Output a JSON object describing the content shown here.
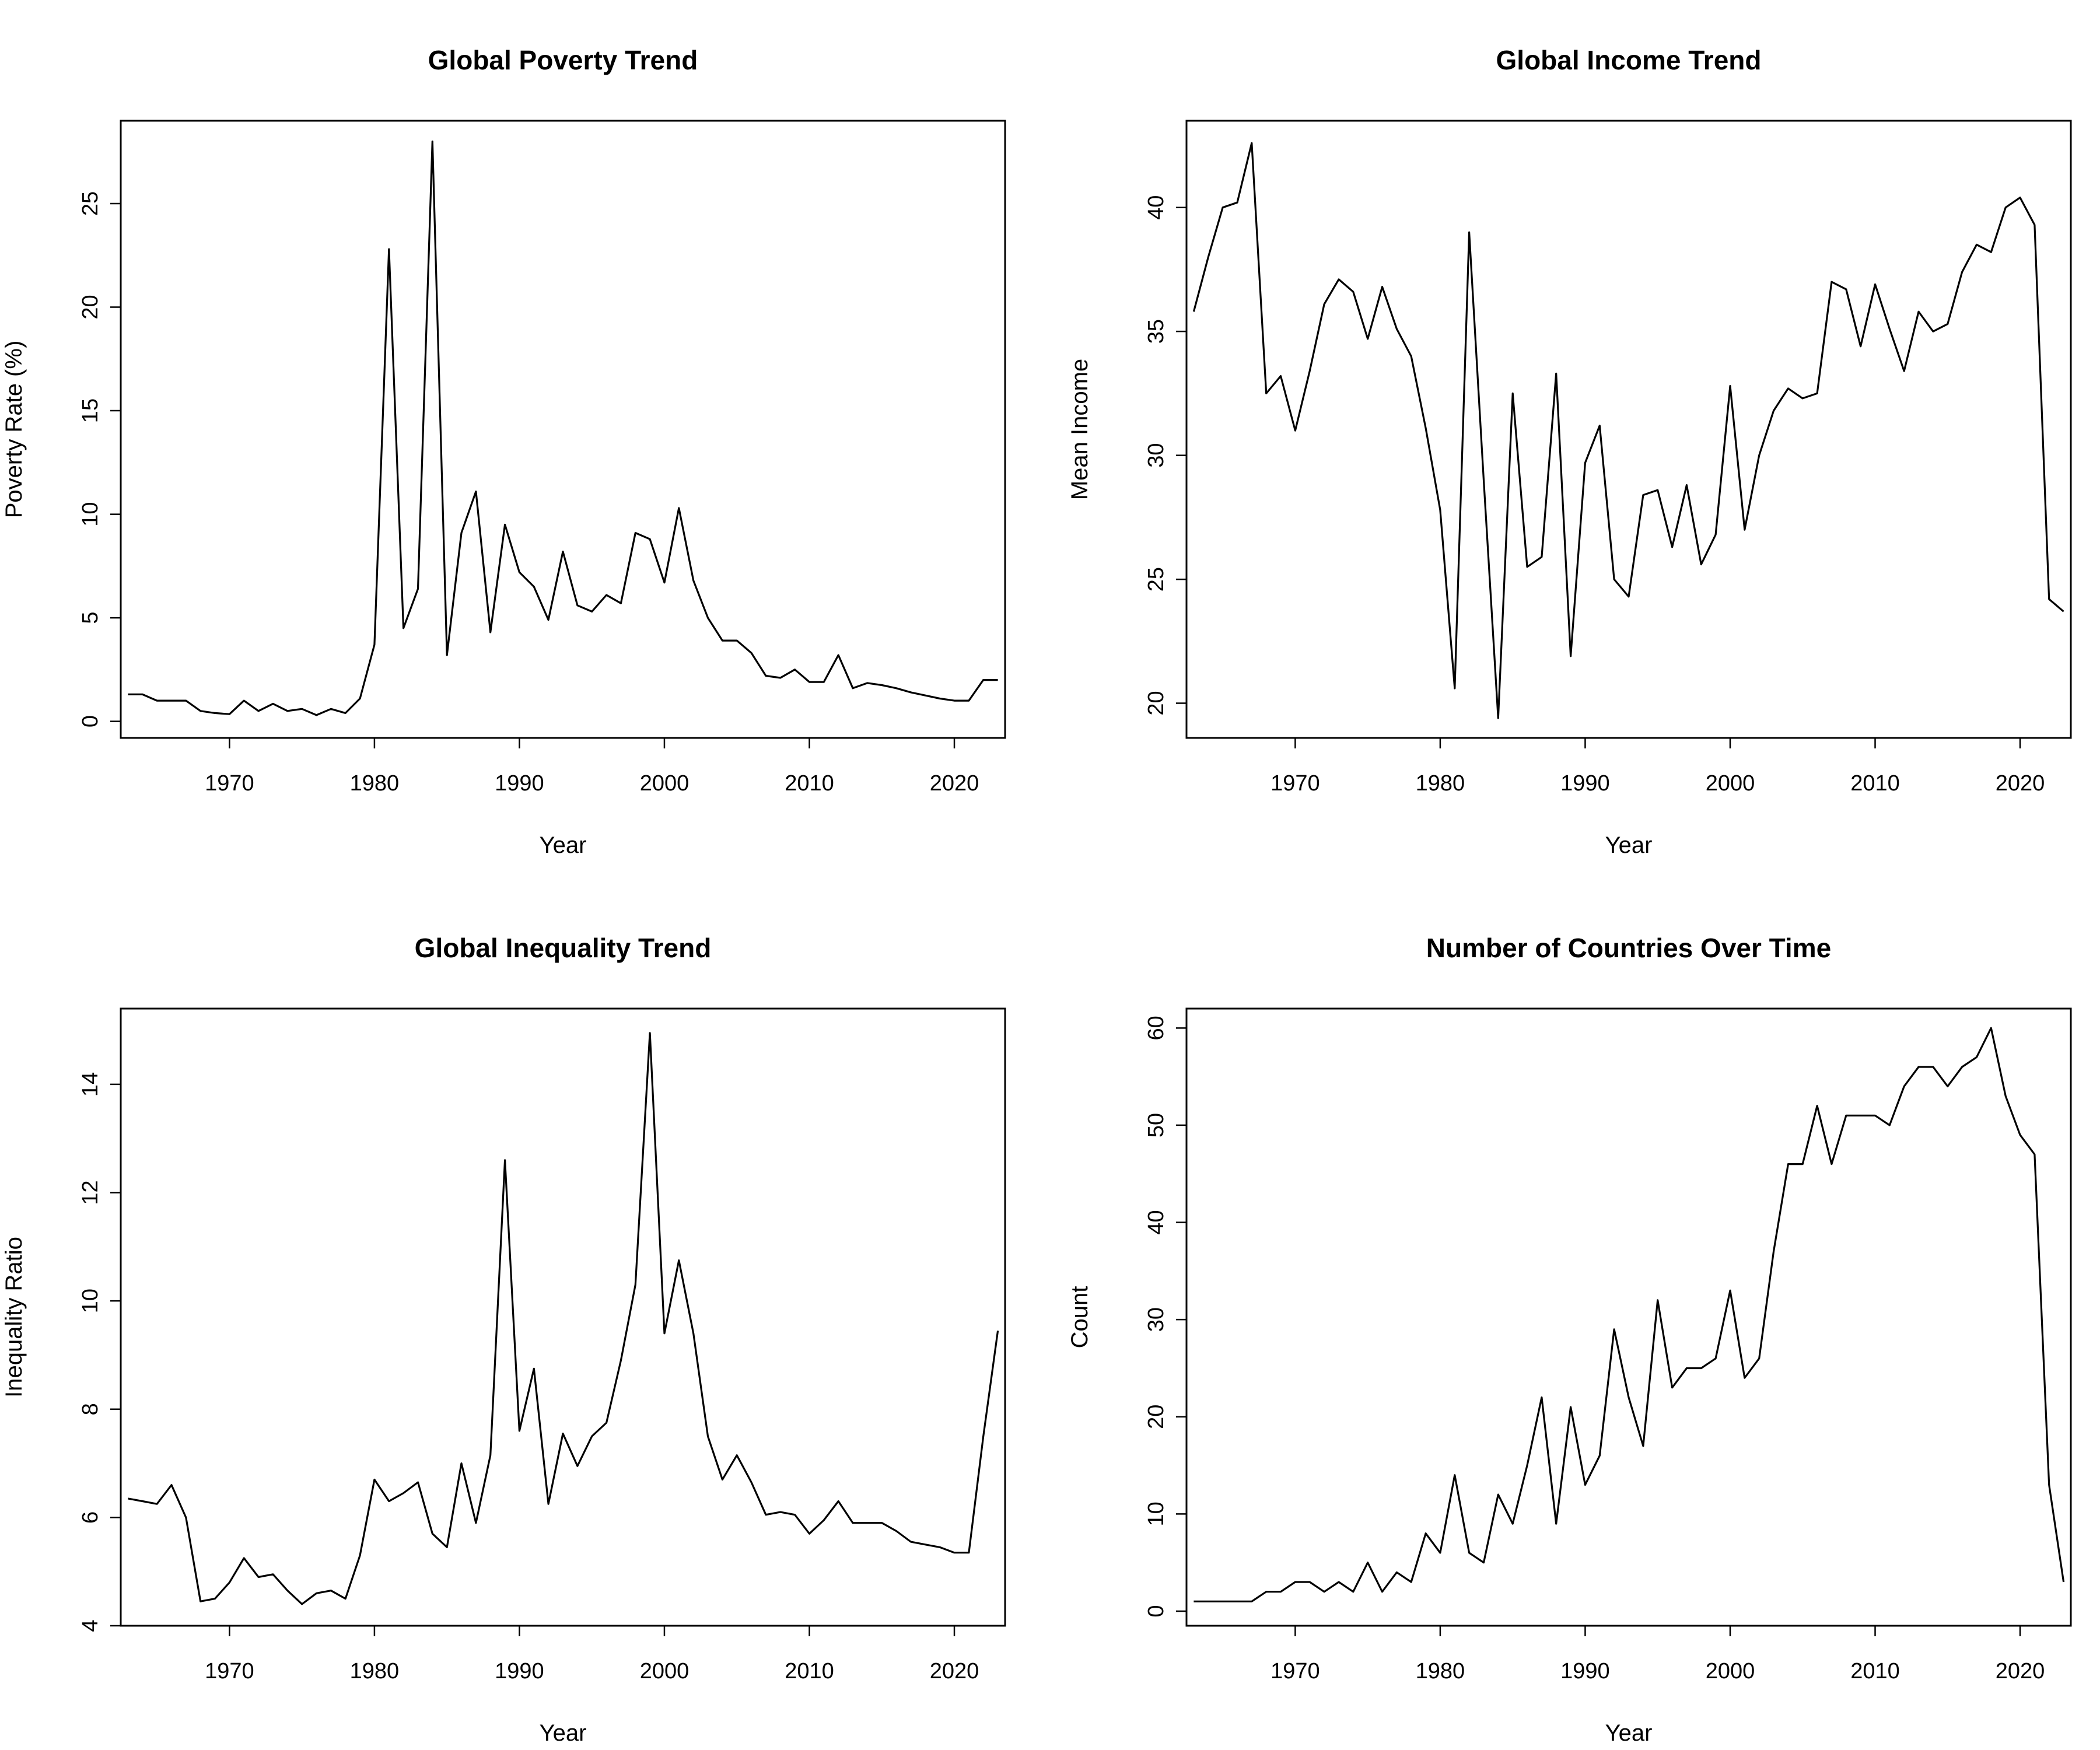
{
  "chart_data": [
    {
      "type": "line",
      "title": "Global Poverty Trend",
      "xlabel": "Year",
      "ylabel": "Poverty Rate (%)",
      "xlim": [
        1962.5,
        2023.5
      ],
      "ylim": [
        -0.8,
        29
      ],
      "xticks": [
        1970,
        1980,
        1990,
        2000,
        2010,
        2020
      ],
      "yticks": [
        0,
        5,
        10,
        15,
        20,
        25
      ],
      "x": [
        1963,
        1964,
        1965,
        1966,
        1967,
        1968,
        1969,
        1970,
        1971,
        1972,
        1973,
        1974,
        1975,
        1976,
        1977,
        1978,
        1979,
        1980,
        1981,
        1982,
        1983,
        1984,
        1985,
        1986,
        1987,
        1988,
        1989,
        1990,
        1991,
        1992,
        1993,
        1994,
        1995,
        1996,
        1997,
        1998,
        1999,
        2000,
        2001,
        2002,
        2003,
        2004,
        2005,
        2006,
        2007,
        2008,
        2009,
        2010,
        2011,
        2012,
        2013,
        2014,
        2015,
        2016,
        2017,
        2018,
        2019,
        2020,
        2021,
        2022,
        2023
      ],
      "y": [
        1.3,
        1.3,
        1.0,
        1.0,
        1.0,
        0.5,
        0.4,
        0.35,
        1.0,
        0.5,
        0.85,
        0.5,
        0.6,
        0.3,
        0.6,
        0.4,
        1.1,
        3.7,
        22.8,
        4.5,
        6.4,
        28.0,
        3.2,
        9.1,
        11.1,
        4.3,
        9.5,
        7.2,
        6.5,
        4.9,
        8.2,
        5.6,
        5.3,
        6.1,
        5.7,
        9.1,
        8.8,
        6.7,
        10.3,
        6.8,
        5.0,
        3.9,
        3.9,
        3.3,
        2.2,
        2.1,
        2.5,
        1.9,
        1.9,
        3.2,
        1.6,
        1.85,
        1.75,
        1.6,
        1.4,
        1.25,
        1.1,
        1.0,
        1.0,
        2.0,
        2.0
      ]
    },
    {
      "type": "line",
      "title": "Global Income Trend",
      "xlabel": "Year",
      "ylabel": "Mean Income",
      "xlim": [
        1962.5,
        2023.5
      ],
      "ylim": [
        18.6,
        43.5
      ],
      "xticks": [
        1970,
        1980,
        1990,
        2000,
        2010,
        2020
      ],
      "yticks": [
        20,
        25,
        30,
        35,
        40
      ],
      "x": [
        1963,
        1964,
        1965,
        1966,
        1967,
        1968,
        1969,
        1970,
        1971,
        1972,
        1973,
        1974,
        1975,
        1976,
        1977,
        1978,
        1979,
        1980,
        1981,
        1982,
        1983,
        1984,
        1985,
        1986,
        1987,
        1988,
        1989,
        1990,
        1991,
        1992,
        1993,
        1994,
        1995,
        1996,
        1997,
        1998,
        1999,
        2000,
        2001,
        2002,
        2003,
        2004,
        2005,
        2006,
        2007,
        2008,
        2009,
        2010,
        2011,
        2012,
        2013,
        2014,
        2015,
        2016,
        2017,
        2018,
        2019,
        2020,
        2021,
        2022,
        2023
      ],
      "y": [
        35.8,
        38.0,
        40.0,
        40.2,
        42.6,
        32.5,
        33.2,
        31.0,
        33.4,
        36.1,
        37.1,
        36.6,
        34.7,
        36.8,
        35.1,
        34.0,
        31.1,
        27.8,
        20.6,
        39.0,
        29.0,
        19.4,
        32.5,
        25.5,
        25.9,
        33.3,
        21.9,
        29.7,
        31.2,
        25.0,
        24.3,
        28.4,
        28.6,
        26.3,
        28.8,
        25.6,
        26.8,
        32.8,
        27.0,
        30.0,
        31.8,
        32.7,
        32.3,
        32.5,
        37.0,
        36.7,
        34.4,
        36.9,
        35.1,
        33.4,
        35.8,
        35.0,
        35.3,
        37.4,
        38.5,
        38.2,
        40.0,
        40.4,
        39.3,
        24.2,
        23.7
      ]
    },
    {
      "type": "line",
      "title": "Global Inequality Trend",
      "xlabel": "Year",
      "ylabel": "Inequality Ratio",
      "xlim": [
        1962.5,
        2023.5
      ],
      "ylim": [
        4.0,
        15.4
      ],
      "xticks": [
        1970,
        1980,
        1990,
        2000,
        2010,
        2020
      ],
      "yticks": [
        4,
        6,
        8,
        10,
        12,
        14
      ],
      "x": [
        1963,
        1964,
        1965,
        1966,
        1967,
        1968,
        1969,
        1970,
        1971,
        1972,
        1973,
        1974,
        1975,
        1976,
        1977,
        1978,
        1979,
        1980,
        1981,
        1982,
        1983,
        1984,
        1985,
        1986,
        1987,
        1988,
        1989,
        1990,
        1991,
        1992,
        1993,
        1994,
        1995,
        1996,
        1997,
        1998,
        1999,
        2000,
        2001,
        2002,
        2003,
        2004,
        2005,
        2006,
        2007,
        2008,
        2009,
        2010,
        2011,
        2012,
        2013,
        2014,
        2015,
        2016,
        2017,
        2018,
        2019,
        2020,
        2021,
        2022,
        2023
      ],
      "y": [
        6.35,
        6.3,
        6.25,
        6.6,
        6.0,
        4.45,
        4.5,
        4.8,
        5.25,
        4.9,
        4.95,
        4.65,
        4.4,
        4.6,
        4.65,
        4.5,
        5.3,
        6.7,
        6.3,
        6.45,
        6.65,
        5.7,
        5.45,
        7.0,
        5.9,
        7.15,
        12.6,
        7.6,
        8.75,
        6.25,
        7.55,
        6.95,
        7.5,
        7.75,
        8.9,
        10.3,
        14.95,
        9.4,
        10.75,
        9.4,
        7.5,
        6.7,
        7.15,
        6.65,
        6.05,
        6.1,
        6.05,
        5.7,
        5.95,
        6.3,
        5.9,
        5.9,
        5.9,
        5.75,
        5.55,
        5.5,
        5.45,
        5.35,
        5.35,
        7.5,
        9.45
      ]
    },
    {
      "type": "line",
      "title": "Number of Countries Over Time",
      "xlabel": "Year",
      "ylabel": "Count",
      "xlim": [
        1962.5,
        2023.5
      ],
      "ylim": [
        -1.5,
        62
      ],
      "xticks": [
        1970,
        1980,
        1990,
        2000,
        2010,
        2020
      ],
      "yticks": [
        0,
        10,
        20,
        30,
        40,
        50,
        60
      ],
      "x": [
        1963,
        1964,
        1965,
        1966,
        1967,
        1968,
        1969,
        1970,
        1971,
        1972,
        1973,
        1974,
        1975,
        1976,
        1977,
        1978,
        1979,
        1980,
        1981,
        1982,
        1983,
        1984,
        1985,
        1986,
        1987,
        1988,
        1989,
        1990,
        1991,
        1992,
        1993,
        1994,
        1995,
        1996,
        1997,
        1998,
        1999,
        2000,
        2001,
        2002,
        2003,
        2004,
        2005,
        2006,
        2007,
        2008,
        2009,
        2010,
        2011,
        2012,
        2013,
        2014,
        2015,
        2016,
        2017,
        2018,
        2019,
        2020,
        2021,
        2022,
        2023
      ],
      "y": [
        1,
        1,
        1,
        1,
        1,
        2,
        2,
        3,
        3,
        2,
        3,
        2,
        5,
        2,
        4,
        3,
        8,
        6,
        14,
        6,
        5,
        12,
        9,
        15,
        22,
        9,
        21,
        13,
        16,
        29,
        22,
        17,
        32,
        23,
        25,
        25,
        26,
        33,
        24,
        26,
        37,
        46,
        46,
        52,
        46,
        51,
        51,
        51,
        50,
        54,
        56,
        56,
        54,
        56,
        57,
        60,
        53,
        49,
        47,
        13,
        3
      ]
    }
  ]
}
